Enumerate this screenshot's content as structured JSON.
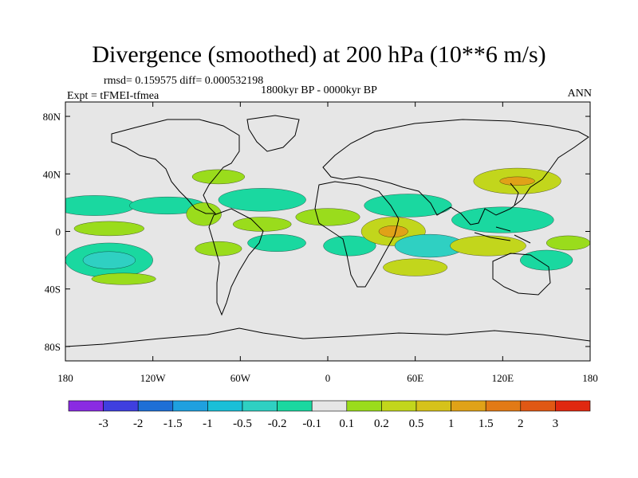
{
  "header": {
    "title": "Divergence (smoothed) at 200 hPa (10**6 m/s)",
    "stats": "rmsd= 0.159575 diff= 0.000532198",
    "period": "1800kyr BP - 0000kyr BP",
    "expt": "Expt = tFMEI-tfmea",
    "season": "ANN"
  },
  "chart_data": {
    "type": "heatmap",
    "title": "Divergence (smoothed) at 200 hPa (10**6 m/s)",
    "projection": "cylindrical-equidistant",
    "xlim": [
      -180,
      180
    ],
    "ylim": [
      -90,
      90
    ],
    "x_ticks": [
      {
        "value": -180,
        "label": "180"
      },
      {
        "value": -120,
        "label": "120W"
      },
      {
        "value": -60,
        "label": "60W"
      },
      {
        "value": 0,
        "label": "0"
      },
      {
        "value": 60,
        "label": "60E"
      },
      {
        "value": 120,
        "label": "120E"
      },
      {
        "value": 180,
        "label": "180"
      }
    ],
    "y_ticks": [
      {
        "value": 80,
        "label": "80N"
      },
      {
        "value": 40,
        "label": "40N"
      },
      {
        "value": 0,
        "label": "0"
      },
      {
        "value": -40,
        "label": "40S"
      },
      {
        "value": -80,
        "label": "80S"
      }
    ],
    "colorbar": {
      "colors": [
        "#8a2be2",
        "#3f3fdf",
        "#1e6fd6",
        "#1fa0df",
        "#19bfd8",
        "#2fd0c2",
        "#1ad8a0",
        "#e6e6e6",
        "#9adc1c",
        "#c2d61c",
        "#d6c21a",
        "#e0a218",
        "#e27a16",
        "#e05814",
        "#e02810"
      ],
      "labels": [
        "-3",
        "-2",
        "-1.5",
        "-1",
        "-0.5",
        "-0.2",
        "-0.1",
        "0.1",
        "0.2",
        "0.5",
        "1",
        "1.5",
        "2",
        "3"
      ]
    },
    "blobs": [
      {
        "lon": -160,
        "lat": 18,
        "rlon": 28,
        "rlat": 7,
        "level": -0.2
      },
      {
        "lon": -110,
        "lat": 18,
        "rlon": 26,
        "rlat": 6,
        "level": -0.2
      },
      {
        "lon": -150,
        "lat": 2,
        "rlon": 24,
        "rlat": 5,
        "level": 0.1
      },
      {
        "lon": -150,
        "lat": -20,
        "rlon": 30,
        "rlat": 12,
        "level": -0.2
      },
      {
        "lon": -150,
        "lat": -20,
        "rlon": 18,
        "rlat": 6,
        "level": -0.5
      },
      {
        "lon": -140,
        "lat": -33,
        "rlon": 22,
        "rlat": 4,
        "level": 0.1
      },
      {
        "lon": -75,
        "lat": 38,
        "rlon": 18,
        "rlat": 5,
        "level": 0.1
      },
      {
        "lon": -45,
        "lat": 22,
        "rlon": 30,
        "rlat": 8,
        "level": -0.2
      },
      {
        "lon": -85,
        "lat": 12,
        "rlon": 12,
        "rlat": 8,
        "level": 0.1
      },
      {
        "lon": -45,
        "lat": 5,
        "rlon": 20,
        "rlat": 5,
        "level": 0.1
      },
      {
        "lon": -35,
        "lat": -8,
        "rlon": 20,
        "rlat": 6,
        "level": -0.2
      },
      {
        "lon": -75,
        "lat": -12,
        "rlon": 16,
        "rlat": 5,
        "level": 0.1
      },
      {
        "lon": 0,
        "lat": 10,
        "rlon": 22,
        "rlat": 6,
        "level": 0.1
      },
      {
        "lon": 15,
        "lat": -10,
        "rlon": 18,
        "rlat": 7,
        "level": -0.2
      },
      {
        "lon": 55,
        "lat": 18,
        "rlon": 30,
        "rlat": 8,
        "level": -0.2
      },
      {
        "lon": 45,
        "lat": 0,
        "rlon": 22,
        "rlat": 10,
        "level": 0.2
      },
      {
        "lon": 45,
        "lat": 0,
        "rlon": 10,
        "rlat": 4,
        "level": 1
      },
      {
        "lon": 70,
        "lat": -10,
        "rlon": 24,
        "rlat": 8,
        "level": -0.5
      },
      {
        "lon": 60,
        "lat": -25,
        "rlon": 22,
        "rlat": 6,
        "level": 0.2
      },
      {
        "lon": 120,
        "lat": 8,
        "rlon": 35,
        "rlat": 9,
        "level": -0.2
      },
      {
        "lon": 130,
        "lat": 35,
        "rlon": 30,
        "rlat": 9,
        "level": 0.2
      },
      {
        "lon": 130,
        "lat": 35,
        "rlon": 12,
        "rlat": 3,
        "level": 1
      },
      {
        "lon": 110,
        "lat": -10,
        "rlon": 26,
        "rlat": 7,
        "level": 0.2
      },
      {
        "lon": 150,
        "lat": -20,
        "rlon": 18,
        "rlat": 7,
        "level": -0.2
      },
      {
        "lon": 165,
        "lat": -8,
        "rlon": 15,
        "rlat": 5,
        "level": 0.1
      }
    ]
  }
}
